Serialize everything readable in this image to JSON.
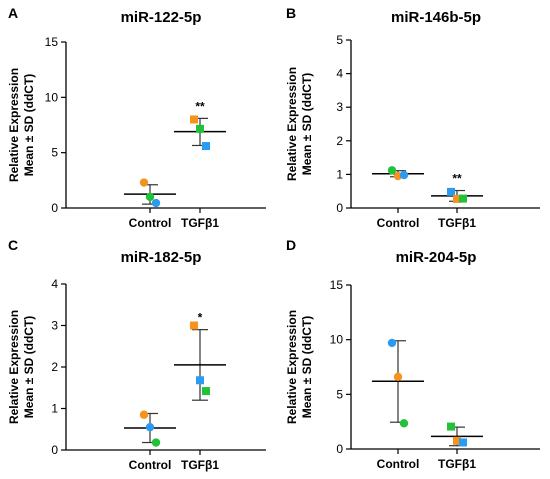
{
  "chart_data": [
    {
      "panel": "A",
      "type": "scatter",
      "title": "miR-122-5p",
      "ylabel_lines": [
        "Relative Expression",
        "Mean ± SD (ddCT)"
      ],
      "ylim": [
        0,
        15
      ],
      "yticks": [
        "0",
        "5",
        "10",
        "15"
      ],
      "categories": [
        "Control",
        "TGFβ1"
      ],
      "groups": [
        {
          "category": "Control",
          "mean": 1.25,
          "sd_low": 0.35,
          "sd_high": 2.1,
          "points": [
            {
              "y": 2.3,
              "shape": "circle",
              "color": "#f5931e"
            },
            {
              "y": 1.0,
              "shape": "circle",
              "color": "#22c13a"
            },
            {
              "y": 0.45,
              "shape": "circle",
              "color": "#2a9bf0"
            }
          ]
        },
        {
          "category": "TGFβ1",
          "mean": 6.9,
          "sd_low": 5.65,
          "sd_high": 8.1,
          "annotation": "**",
          "points": [
            {
              "y": 8.0,
              "shape": "square",
              "color": "#f5931e"
            },
            {
              "y": 7.15,
              "shape": "square",
              "color": "#22c13a"
            },
            {
              "y": 5.6,
              "shape": "square",
              "color": "#2a9bf0"
            }
          ]
        }
      ]
    },
    {
      "panel": "B",
      "type": "scatter",
      "title": "miR-146b-5p",
      "ylabel_lines": [
        "Relative Expression",
        "Mean ± SD (ddCT)"
      ],
      "ylim": [
        0,
        5
      ],
      "yticks": [
        "0",
        "1",
        "2",
        "3",
        "4",
        "5"
      ],
      "categories": [
        "Control",
        "TGFβ1"
      ],
      "groups": [
        {
          "category": "Control",
          "mean": 1.02,
          "sd_low": 0.93,
          "sd_high": 1.11,
          "points": [
            {
              "y": 1.12,
              "shape": "circle",
              "color": "#22c13a"
            },
            {
              "y": 0.95,
              "shape": "circle",
              "color": "#f5931e"
            },
            {
              "y": 0.98,
              "shape": "circle",
              "color": "#2a9bf0"
            }
          ]
        },
        {
          "category": "TGFβ1",
          "mean": 0.36,
          "sd_low": 0.2,
          "sd_high": 0.52,
          "annotation": "**",
          "points": [
            {
              "y": 0.48,
              "shape": "square",
              "color": "#2a9bf0"
            },
            {
              "y": 0.27,
              "shape": "square",
              "color": "#f5931e"
            },
            {
              "y": 0.28,
              "shape": "square",
              "color": "#22c13a"
            }
          ]
        }
      ]
    },
    {
      "panel": "C",
      "type": "scatter",
      "title": "miR-182-5p",
      "ylabel_lines": [
        "Relative Expression",
        "Mean ± SD (ddCT)"
      ],
      "ylim": [
        0,
        4
      ],
      "yticks": [
        "0",
        "1",
        "2",
        "3",
        "4"
      ],
      "categories": [
        "Control",
        "TGFβ1"
      ],
      "groups": [
        {
          "category": "Control",
          "mean": 0.53,
          "sd_low": 0.18,
          "sd_high": 0.88,
          "points": [
            {
              "y": 0.85,
              "shape": "circle",
              "color": "#f5931e"
            },
            {
              "y": 0.55,
              "shape": "circle",
              "color": "#2a9bf0"
            },
            {
              "y": 0.18,
              "shape": "circle",
              "color": "#22c13a"
            }
          ]
        },
        {
          "category": "TGFβ1",
          "mean": 2.05,
          "sd_low": 1.2,
          "sd_high": 2.9,
          "annotation": "*",
          "points": [
            {
              "y": 3.0,
              "shape": "square",
              "color": "#f5931e"
            },
            {
              "y": 1.68,
              "shape": "square",
              "color": "#2a9bf0"
            },
            {
              "y": 1.42,
              "shape": "square",
              "color": "#22c13a"
            }
          ]
        }
      ]
    },
    {
      "panel": "D",
      "type": "scatter",
      "title": "miR-204-5p",
      "ylabel_lines": [
        "Relative Expression",
        "Mean ± SD (ddCT)"
      ],
      "ylim": [
        0,
        15
      ],
      "yticks": [
        "0",
        "5",
        "10",
        "15"
      ],
      "categories": [
        "Control",
        "TGFβ1"
      ],
      "groups": [
        {
          "category": "Control",
          "mean": 6.2,
          "sd_low": 2.45,
          "sd_high": 9.9,
          "points": [
            {
              "y": 9.7,
              "shape": "circle",
              "color": "#2a9bf0"
            },
            {
              "y": 6.6,
              "shape": "circle",
              "color": "#f5931e"
            },
            {
              "y": 2.35,
              "shape": "circle",
              "color": "#22c13a"
            }
          ]
        },
        {
          "category": "TGFβ1",
          "mean": 1.15,
          "sd_low": 0.3,
          "sd_high": 2.0,
          "points": [
            {
              "y": 2.05,
              "shape": "square",
              "color": "#22c13a"
            },
            {
              "y": 0.75,
              "shape": "square",
              "color": "#f5931e"
            },
            {
              "y": 0.6,
              "shape": "square",
              "color": "#2a9bf0"
            }
          ]
        }
      ]
    }
  ]
}
